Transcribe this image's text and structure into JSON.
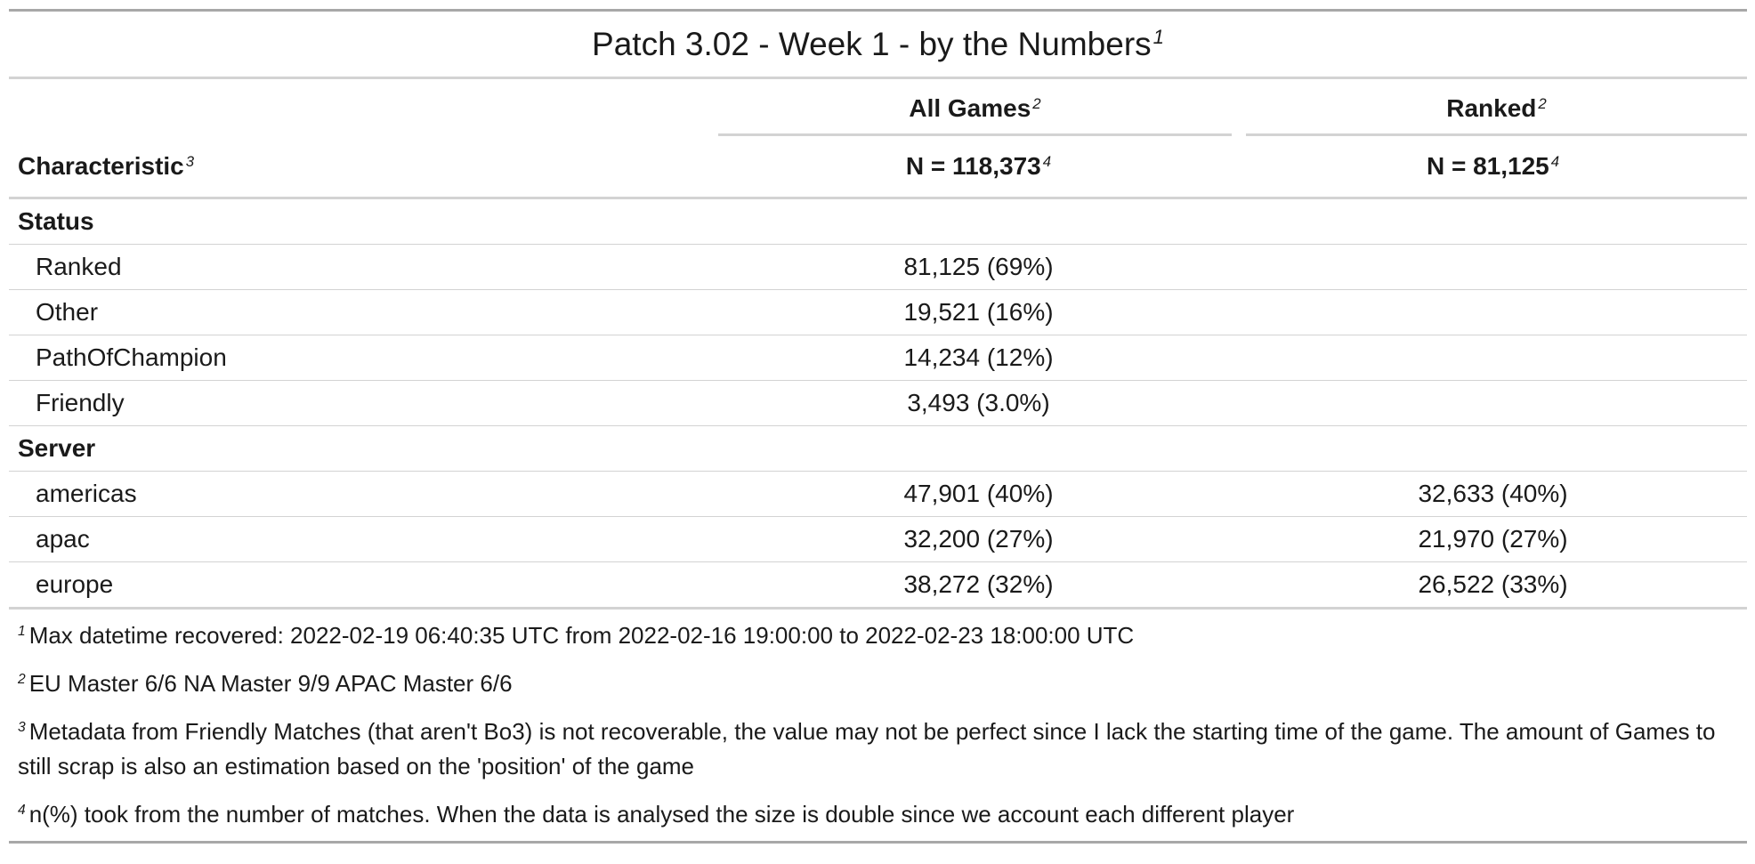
{
  "table": {
    "title": "Patch 3.02 - Week 1 - by the Numbers",
    "title_note": "1",
    "columns": {
      "characteristic": {
        "label": "Characteristic",
        "note": "3"
      },
      "all_games": {
        "label": "All Games",
        "note": "2",
        "n": "N = 118,373",
        "n_note": "4"
      },
      "ranked": {
        "label": "Ranked",
        "note": "2",
        "n": "N = 81,125",
        "n_note": "4"
      }
    },
    "groups": [
      {
        "label": "Status",
        "rows": [
          {
            "label": "Ranked",
            "all": "81,125 (69%)",
            "ranked": ""
          },
          {
            "label": "Other",
            "all": "19,521 (16%)",
            "ranked": ""
          },
          {
            "label": "PathOfChampion",
            "all": "14,234 (12%)",
            "ranked": ""
          },
          {
            "label": "Friendly",
            "all": "3,493 (3.0%)",
            "ranked": ""
          }
        ]
      },
      {
        "label": "Server",
        "rows": [
          {
            "label": "americas",
            "all": "47,901 (40%)",
            "ranked": "32,633 (40%)"
          },
          {
            "label": "apac",
            "all": "32,200 (27%)",
            "ranked": "21,970 (27%)"
          },
          {
            "label": "europe",
            "all": "38,272 (32%)",
            "ranked": "26,522 (33%)"
          }
        ]
      }
    ],
    "footnotes": [
      {
        "mark": "1",
        "text": "Max datetime recovered: 2022-02-19 06:40:35 UTC from 2022-02-16 19:00:00 to 2022-02-23 18:00:00 UTC"
      },
      {
        "mark": "2",
        "text": "EU Master 6/6 NA Master 9/9 APAC Master 6/6"
      },
      {
        "mark": "3",
        "text": "Metadata from Friendly Matches (that aren't Bo3) is not recoverable, the value may not be perfect since I lack the starting time of the game. The amount of Games to still scrap is also an estimation based on the 'position' of the game"
      },
      {
        "mark": "4",
        "text": "n(%) took from the number of matches. When the data is analysed the size is double since we account each different player"
      }
    ]
  }
}
